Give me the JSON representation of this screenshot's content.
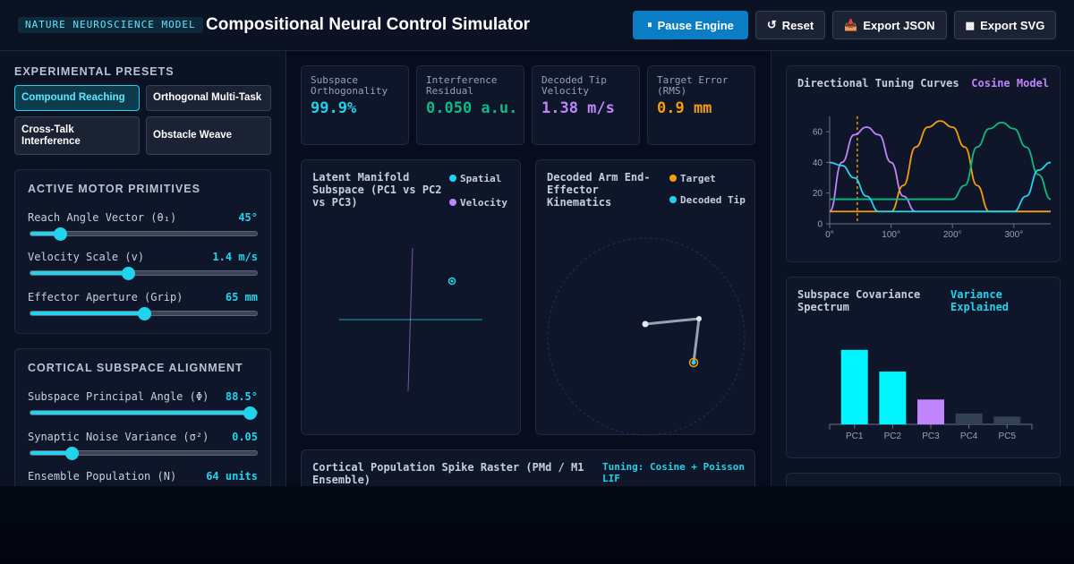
{
  "header": {
    "badge": "NATURE NEUROSCIENCE MODEL",
    "title": "Compositional Neural Control Simulator",
    "buttons": {
      "pause": {
        "icon": "pause-icon",
        "glyph": "⏸",
        "label": "Pause Engine"
      },
      "reset": {
        "icon": "reset-icon",
        "glyph": "↺",
        "label": "Reset"
      },
      "export_json": {
        "icon": "download-icon",
        "glyph": "📥",
        "label": "Export JSON"
      },
      "export_svg": {
        "icon": "image-icon",
        "glyph": "▩",
        "label": "Export SVG"
      }
    }
  },
  "presets": {
    "title": "EXPERIMENTAL PRESETS",
    "items": [
      "Compound Reaching",
      "Orthogonal Multi-Task",
      "Cross-Talk Interference",
      "Obstacle Weave"
    ],
    "active_index": 0
  },
  "motor": {
    "title": "ACTIVE MOTOR PRIMITIVES",
    "params": [
      {
        "label": "Reach Angle Vector (θ₁)",
        "value": "45°",
        "level": 0.13
      },
      {
        "label": "Velocity Scale (v)",
        "value": "1.4 m/s",
        "level": 0.43
      },
      {
        "label": "Effector Aperture (Grip)",
        "value": "65 mm",
        "level": 0.5
      }
    ]
  },
  "cortical": {
    "title": "CORTICAL SUBSPACE ALIGNMENT",
    "params": [
      {
        "label": "Subspace Principal Angle (Φ)",
        "value": "88.5°",
        "level": 0.97
      },
      {
        "label": "Synaptic Noise Variance (σ²)",
        "value": "0.05",
        "level": 0.18
      },
      {
        "label": "Ensemble Population (N)",
        "value": "64 units",
        "level": null
      }
    ]
  },
  "metrics": [
    {
      "label": "Subspace Orthogonality",
      "value": "99.9%",
      "color": "#22d3ee"
    },
    {
      "label": "Interference Residual",
      "value": "0.050 a.u.",
      "color": "#10b981"
    },
    {
      "label": "Decoded Tip Velocity",
      "value": "1.38 m/s",
      "color": "#c084fc"
    },
    {
      "label": "Target Error (RMS)",
      "value": "0.9 mm",
      "color": "#f59e0b"
    }
  ],
  "manifold": {
    "title": "Latent Manifold Subspace (PC1 vs PC2 vs PC3)",
    "legend": [
      {
        "label": "Spatial",
        "color": "#22d3ee"
      },
      {
        "label": "Velocity",
        "color": "#c084fc"
      }
    ]
  },
  "arm": {
    "title": "Decoded Arm End-Effector Kinematics",
    "legend": [
      {
        "label": "Target",
        "color": "#f59e0b"
      },
      {
        "label": "Decoded Tip",
        "color": "#22d3ee"
      }
    ]
  },
  "raster": {
    "title": "Cortical Population Spike Raster (PMd / M1 Ensemble)",
    "tag": "Tuning: Cosine + Poisson LIF"
  },
  "tuning": {
    "title": "Directional Tuning Curves",
    "tag": "Cosine Model"
  },
  "spectrum": {
    "title": "Subspace Covariance Spectrum",
    "tag": "Variance Explained"
  },
  "chart_data": [
    {
      "type": "line",
      "title": "Directional Tuning Curves",
      "xlabel": "",
      "ylabel": "",
      "xlim": [
        0,
        360
      ],
      "ylim": [
        0,
        70
      ],
      "x_ticks": [
        "0°",
        "100°",
        "200°",
        "300°"
      ],
      "y_ticks": [
        "0",
        "20",
        "40",
        "60"
      ],
      "marker_x": 45,
      "series": [
        {
          "color": "#c084fc",
          "x": [
            0,
            20,
            40,
            60,
            80,
            100,
            120,
            140,
            160,
            180,
            200,
            220,
            240,
            260,
            280,
            300,
            320,
            340,
            360
          ],
          "y": [
            8,
            40,
            58,
            63,
            58,
            40,
            18,
            8,
            8,
            8,
            8,
            8,
            8,
            8,
            8,
            8,
            8,
            8,
            8
          ]
        },
        {
          "color": "#f59e0b",
          "x": [
            0,
            20,
            40,
            60,
            80,
            100,
            120,
            140,
            160,
            180,
            200,
            220,
            240,
            260,
            280,
            300,
            320,
            340,
            360
          ],
          "y": [
            8,
            8,
            8,
            8,
            8,
            8,
            25,
            50,
            63,
            67,
            63,
            50,
            25,
            8,
            8,
            8,
            8,
            8,
            8
          ]
        },
        {
          "color": "#10b981",
          "x": [
            0,
            20,
            40,
            60,
            80,
            100,
            120,
            140,
            160,
            180,
            200,
            220,
            240,
            260,
            280,
            300,
            320,
            340,
            360
          ],
          "y": [
            16,
            16,
            16,
            16,
            16,
            16,
            16,
            16,
            16,
            16,
            16,
            25,
            50,
            62,
            66,
            62,
            50,
            32,
            16
          ]
        },
        {
          "color": "#22d3ee",
          "x": [
            0,
            20,
            40,
            60,
            80,
            100,
            120,
            140,
            160,
            180,
            200,
            220,
            240,
            260,
            280,
            300,
            320,
            340,
            360
          ],
          "y": [
            40,
            38,
            30,
            18,
            8,
            8,
            8,
            8,
            8,
            8,
            8,
            8,
            8,
            8,
            8,
            8,
            18,
            35,
            40
          ]
        }
      ]
    },
    {
      "type": "bar",
      "title": "Subspace Covariance Spectrum",
      "categories": [
        "PC1",
        "PC2",
        "PC3",
        "PC4",
        "PC5"
      ],
      "values": [
        48,
        34,
        16,
        7,
        5
      ],
      "colors": [
        "#00f5ff",
        "#00f5ff",
        "#c084fc",
        "#334155",
        "#334155"
      ],
      "ylim": [
        0,
        60
      ]
    }
  ]
}
